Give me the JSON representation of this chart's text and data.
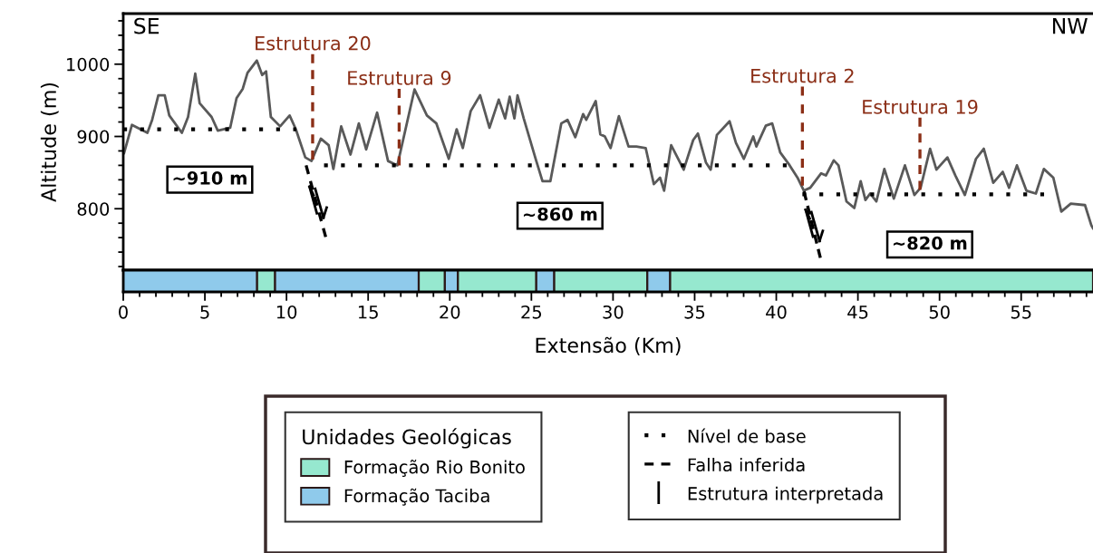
{
  "chart_data": [
    {
      "type": "line",
      "ylabel": "Altitude (m)",
      "xlim": [
        0,
        59.4
      ],
      "ylim": [
        715,
        1070
      ],
      "tick_labels": "y",
      "legend": "bottom",
      "yticks": [
        {
          "value": 720,
          "label": null
        },
        {
          "value": 740,
          "label": null
        },
        {
          "value": 760,
          "label": null
        },
        {
          "value": 780,
          "label": null
        },
        800,
        {
          "value": 820,
          "label": null
        },
        {
          "value": 840,
          "label": null
        },
        {
          "value": 860,
          "label": null
        },
        {
          "value": 880,
          "label": null
        },
        900,
        {
          "value": 920,
          "label": null
        },
        {
          "value": 940,
          "label": null
        },
        {
          "value": 960,
          "label": null
        },
        {
          "value": 980,
          "label": null
        },
        1000,
        {
          "value": 1020,
          "label": null
        },
        {
          "value": 1040,
          "label": null
        },
        {
          "value": 1060,
          "label": null
        }
      ],
      "annotations": [
        "SE",
        "NW",
        "Estrutura interpretada",
        "~910 m",
        "~860 m",
        "~820 m"
      ],
      "series": [
        {
          "color": "#595959",
          "line_style": "solid",
          "x": [
            0.05,
            0.53,
            1.48,
            1.77,
            2.15,
            2.54,
            2.82,
            3.59,
            3.97,
            4.41,
            4.68,
            5.41,
            5.79,
            6.55,
            6.94,
            7.32,
            7.61,
            8.18,
            8.51,
            8.75,
            9.04,
            9.61,
            10.19,
            10.57,
            11.15,
            11.53,
            12.1,
            12.58,
            12.87,
            13.35,
            13.92,
            14.43,
            14.88,
            15.55,
            16.22,
            16.79,
            17.84,
            18.6,
            19.18,
            19.94,
            20.42,
            20.8,
            21.28,
            21.86,
            22.43,
            23.0,
            23.39,
            23.67,
            23.96,
            24.15,
            24.53,
            25.3,
            25.68,
            26.16,
            26.83,
            27.21,
            27.69,
            28.17,
            28.36,
            28.94,
            29.22,
            29.5,
            29.85,
            30.36,
            30.95,
            31.43,
            32.0,
            32.5,
            32.88,
            33.13,
            33.56,
            34.33,
            34.91,
            35.2,
            35.69,
            35.98,
            36.36,
            37.14,
            37.53,
            38.01,
            38.59,
            38.78,
            39.36,
            39.75,
            40.24,
            40.82,
            41.3,
            41.69,
            42.08,
            42.75,
            43.04,
            43.52,
            43.81,
            44.3,
            44.78,
            45.17,
            45.46,
            45.75,
            46.13,
            46.62,
            47.2,
            47.88,
            48.46,
            48.84,
            49.42,
            49.81,
            50.48,
            50.97,
            51.55,
            52.23,
            52.71,
            53.29,
            53.87,
            54.26,
            54.74,
            55.32,
            55.9,
            56.39,
            56.97,
            57.46,
            58.04,
            58.91,
            59.3,
            59.4
          ],
          "values": [
            877,
            916,
            905,
            923,
            957,
            957,
            929,
            905,
            927,
            987,
            946,
            927,
            908,
            912,
            953,
            966,
            988,
            1005,
            985,
            990,
            927,
            914,
            929,
            910,
            871,
            866,
            897,
            888,
            855,
            914,
            875,
            918,
            882,
            933,
            866,
            860,
            965,
            929,
            918,
            869,
            910,
            884,
            935,
            957,
            912,
            951,
            925,
            955,
            925,
            957,
            925,
            866,
            838,
            838,
            918,
            923,
            899,
            931,
            923,
            949,
            903,
            900,
            884,
            928,
            886,
            886,
            884,
            834,
            843,
            825,
            888,
            854,
            895,
            904,
            864,
            854,
            902,
            921,
            891,
            869,
            900,
            886,
            915,
            918,
            878,
            860,
            843,
            825,
            829,
            849,
            846,
            867,
            860,
            810,
            801,
            838,
            812,
            821,
            810,
            855,
            814,
            860,
            819,
            829,
            883,
            854,
            871,
            846,
            819,
            869,
            883,
            836,
            851,
            829,
            860,
            825,
            821,
            855,
            843,
            796,
            807,
            805,
            777,
            773
          ]
        },
        {
          "name": "Nível de base",
          "color": "#000000",
          "line_style": "dotted",
          "x": [
            0,
            10.6
          ],
          "values": [
            910,
            910
          ]
        },
        {
          "color": "#000000",
          "line_style": "dotted",
          "x": [
            12.3,
            41.2
          ],
          "values": [
            860,
            860
          ]
        },
        {
          "color": "#000000",
          "line_style": "dotted",
          "x": [
            41.6,
            57.2
          ],
          "values": [
            820,
            820
          ]
        },
        {
          "name": "Falha inferida",
          "color": "#000000",
          "line_style": "dashed",
          "x": [
            11.2,
            12.4
          ],
          "values": [
            860,
            761
          ]
        },
        {
          "color": "#000000",
          "line_style": "dashed",
          "x": [
            41.7,
            42.7
          ],
          "values": [
            824,
            732
          ]
        },
        {
          "name": "Estrutura 20",
          "color": "#8b2e16",
          "line_style": "dashed",
          "x": [
            11.6,
            11.6
          ],
          "values": [
            868,
            1014
          ]
        },
        {
          "name": "Estrutura 9",
          "color": "#8b2e16",
          "line_style": "dashed",
          "x": [
            16.9,
            16.9
          ],
          "values": [
            860,
            966
          ]
        },
        {
          "name": "Estrutura 2",
          "color": "#8b2e16",
          "line_style": "dashed",
          "x": [
            41.6,
            41.6
          ],
          "values": [
            832,
            969
          ]
        },
        {
          "name": "Estrutura 19",
          "color": "#8b2e16",
          "line_style": "dashed",
          "x": [
            48.8,
            48.8
          ],
          "values": [
            826,
            926
          ]
        }
      ]
    },
    {
      "type": "bar",
      "orientation": "horizontal",
      "stacked": true,
      "categories": [
        null
      ],
      "xlabel": "Extensão (Km)",
      "xlim": [
        0,
        59.4
      ],
      "tick_labels": "x",
      "legend": "bottom",
      "legend_title": "Unidades Geológicas",
      "xticks": [
        0,
        {
          "value": 1,
          "label": null
        },
        {
          "value": 2,
          "label": null
        },
        {
          "value": 3,
          "label": null
        },
        {
          "value": 4,
          "label": null
        },
        5,
        {
          "value": 6,
          "label": null
        },
        {
          "value": 7,
          "label": null
        },
        {
          "value": 8,
          "label": null
        },
        {
          "value": 9,
          "label": null
        },
        10,
        {
          "value": 11,
          "label": null
        },
        {
          "value": 12,
          "label": null
        },
        {
          "value": 13,
          "label": null
        },
        {
          "value": 14,
          "label": null
        },
        15,
        {
          "value": 16,
          "label": null
        },
        {
          "value": 17,
          "label": null
        },
        {
          "value": 18,
          "label": null
        },
        {
          "value": 19,
          "label": null
        },
        20,
        {
          "value": 21,
          "label": null
        },
        {
          "value": 22,
          "label": null
        },
        {
          "value": 23,
          "label": null
        },
        {
          "value": 24,
          "label": null
        },
        25,
        {
          "value": 26,
          "label": null
        },
        {
          "value": 27,
          "label": null
        },
        {
          "value": 28,
          "label": null
        },
        {
          "value": 29,
          "label": null
        },
        30,
        {
          "value": 31,
          "label": null
        },
        {
          "value": 32,
          "label": null
        },
        {
          "value": 33,
          "label": null
        },
        {
          "value": 34,
          "label": null
        },
        35,
        {
          "value": 36,
          "label": null
        },
        {
          "value": 37,
          "label": null
        },
        {
          "value": 38,
          "label": null
        },
        {
          "value": 39,
          "label": null
        },
        40,
        {
          "value": 41,
          "label": null
        },
        {
          "value": 42,
          "label": null
        },
        {
          "value": 43,
          "label": null
        },
        {
          "value": 44,
          "label": null
        },
        45,
        {
          "value": 46,
          "label": null
        },
        {
          "value": 47,
          "label": null
        },
        {
          "value": 48,
          "label": null
        },
        {
          "value": 49,
          "label": null
        },
        50,
        {
          "value": 51,
          "label": null
        },
        {
          "value": 52,
          "label": null
        },
        {
          "value": 53,
          "label": null
        },
        {
          "value": 54,
          "label": null
        },
        55,
        {
          "value": 56,
          "label": null
        },
        {
          "value": 57,
          "label": null
        },
        {
          "value": 58,
          "label": null
        },
        {
          "value": 59,
          "label": null
        }
      ],
      "series": [
        {
          "name": "Formação Taciba",
          "color": "#8fcaeb",
          "values": [
            8.2
          ]
        },
        {
          "name": "Formação Rio Bonito",
          "color": "#96e8cf",
          "values": [
            1.1
          ]
        },
        {
          "color": "#8fcaeb",
          "values": [
            8.8
          ]
        },
        {
          "color": "#96e8cf",
          "values": [
            1.6
          ]
        },
        {
          "color": "#8fcaeb",
          "values": [
            0.8
          ]
        },
        {
          "color": "#96e8cf",
          "values": [
            4.8
          ]
        },
        {
          "color": "#8fcaeb",
          "values": [
            1.1
          ]
        },
        {
          "color": "#96e8cf",
          "values": [
            5.7
          ]
        },
        {
          "color": "#8fcaeb",
          "values": [
            1.4
          ]
        },
        {
          "color": "#96e8cf",
          "values": [
            25.9
          ]
        }
      ]
    }
  ]
}
